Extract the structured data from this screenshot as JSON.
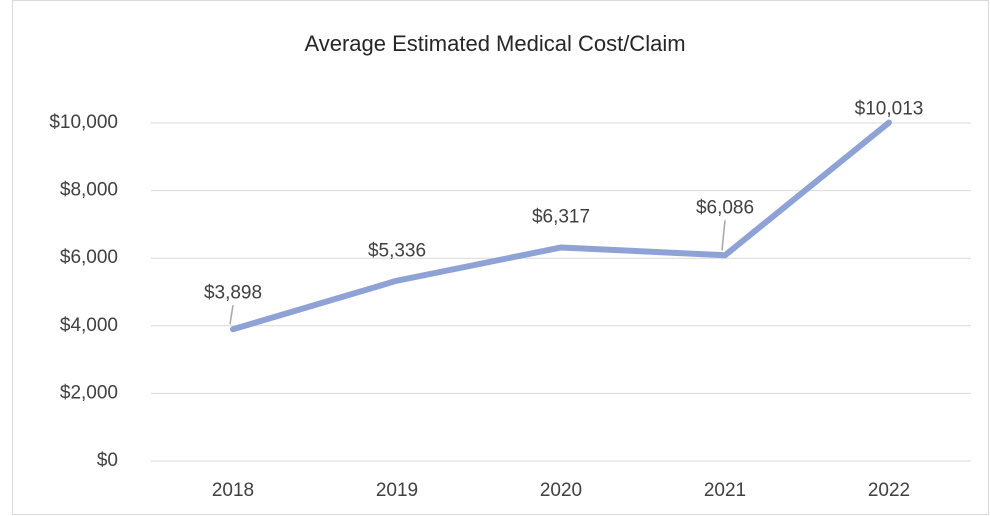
{
  "chart_data": {
    "type": "line",
    "title": "Average Estimated Medical Cost/Claim",
    "categories": [
      "2018",
      "2019",
      "2020",
      "2021",
      "2022"
    ],
    "series": [
      {
        "name": "Average Estimated Medical Cost/Claim",
        "color": "#8ea2d6",
        "values": [
          3898,
          5336,
          6317,
          6086,
          10013
        ],
        "value_labels": [
          "$3,898",
          "$5,336",
          "$6,317",
          "$6,086",
          "$10,013"
        ]
      }
    ],
    "ylim": [
      0,
      10000
    ],
    "yticks": [
      {
        "value": 0,
        "label": "$0"
      },
      {
        "value": 2000,
        "label": "$2,000"
      },
      {
        "value": 4000,
        "label": "$4,000"
      },
      {
        "value": 6000,
        "label": "$6,000"
      },
      {
        "value": 8000,
        "label": "$8,000"
      },
      {
        "value": 10000,
        "label": "$10,000"
      }
    ],
    "grid": true
  }
}
